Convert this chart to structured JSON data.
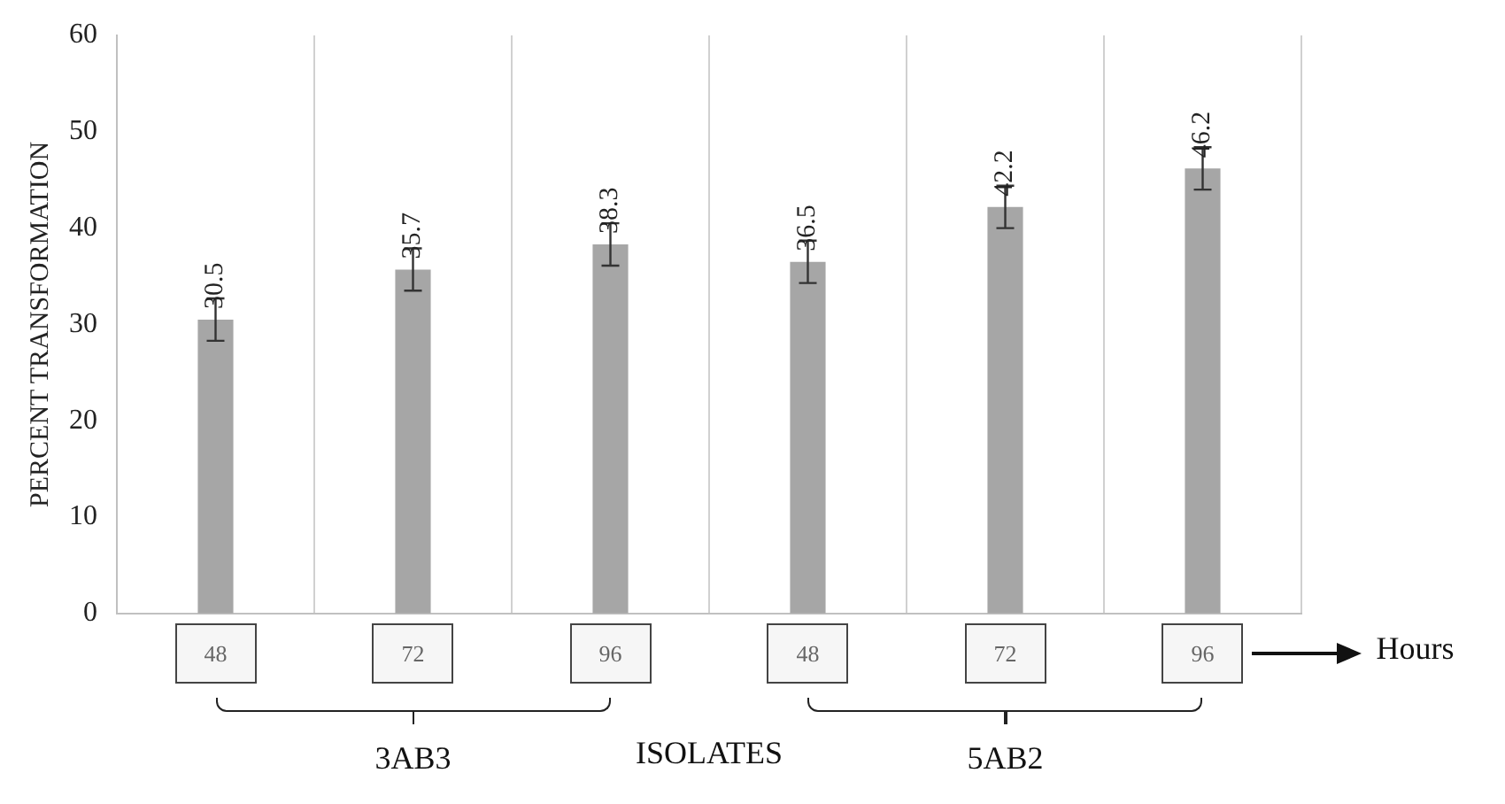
{
  "chart_data": {
    "type": "bar",
    "ylabel": "PERCENT TRANSFORMATION",
    "categories": [
      "48",
      "72",
      "96",
      "48",
      "72",
      "96"
    ],
    "values": [
      30.5,
      35.7,
      38.3,
      36.5,
      42.2,
      46.2
    ],
    "errors": [
      2.2,
      2.2,
      2.2,
      2.2,
      2.2,
      2.2
    ],
    "color": "#a6a6a6",
    "ylim": [
      0,
      60
    ],
    "yticks": [
      0,
      10,
      20,
      30,
      40,
      50,
      60
    ],
    "grid": "x",
    "data_labels": true,
    "annotations": [
      "Hours",
      "3AB3",
      "ISOLATES",
      "5AB2"
    ]
  }
}
